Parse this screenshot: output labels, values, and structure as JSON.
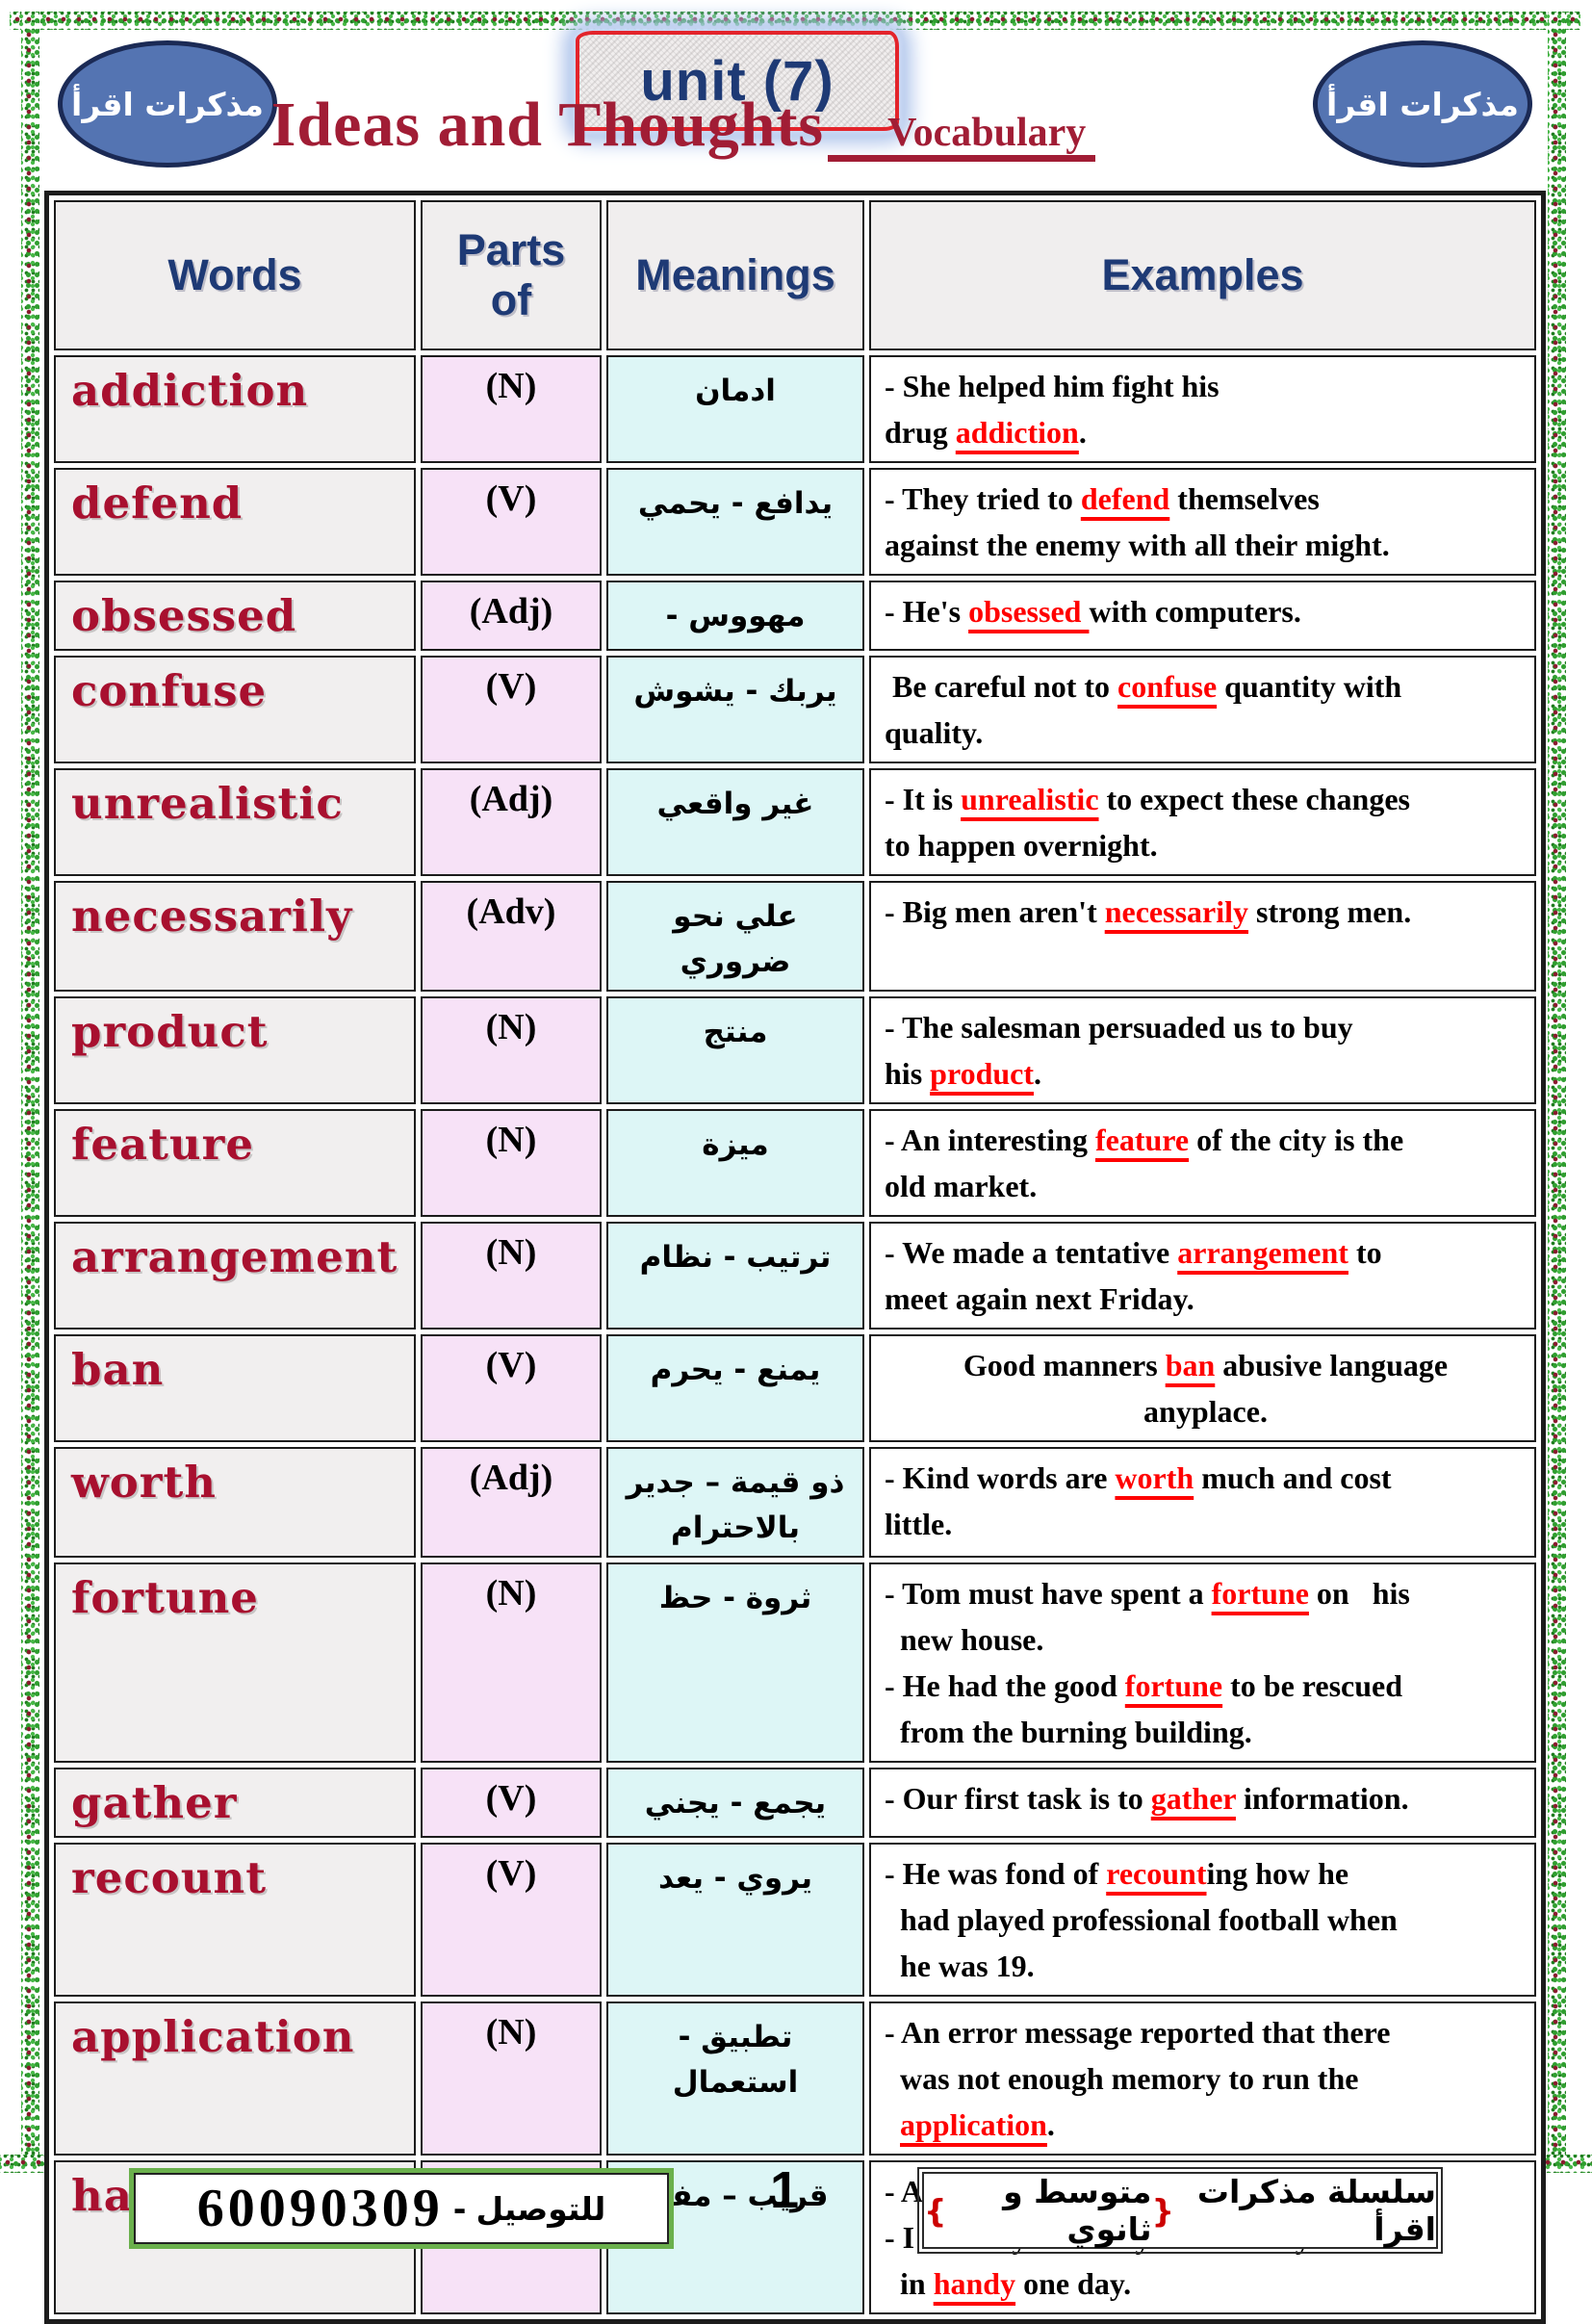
{
  "header": {
    "oval_left": "مذكرات اقرأ",
    "oval_right": "مذكرات اقرأ",
    "unit_badge": "unit (7)",
    "title": "Ideas and Thoughts",
    "subtitle": "Vocabulary"
  },
  "table": {
    "headers": [
      "Words",
      "Parts of",
      "Meanings",
      "Examples"
    ],
    "rows": [
      {
        "word": "addiction",
        "pos": "(N)",
        "meaning": "ادمان",
        "examples": [
          [
            {
              "t": "- She helped him fight his\ndrug "
            },
            {
              "t": "addiction",
              "hl": true
            },
            {
              "t": "."
            }
          ]
        ]
      },
      {
        "word": "defend",
        "pos": "(V)",
        "meaning": "يدافع - يحمي",
        "examples": [
          [
            {
              "t": "- They tried to "
            },
            {
              "t": "defend",
              "hl": true
            },
            {
              "t": " themselves\nagainst the enemy with all their might."
            }
          ]
        ]
      },
      {
        "word": "obsessed",
        "pos": "(Adj)",
        "meaning": "مهووس -",
        "examples": [
          [
            {
              "t": "- He's "
            },
            {
              "t": "obsessed ",
              "hl": true
            },
            {
              "t": "with computers."
            }
          ]
        ]
      },
      {
        "word": "confuse",
        "pos": "(V)",
        "meaning": "يربك - يشوش",
        "examples": [
          [
            {
              "t": " Be careful not to "
            },
            {
              "t": "confuse",
              "hl": true
            },
            {
              "t": " quantity with\nquality."
            }
          ]
        ]
      },
      {
        "word": "unrealistic",
        "pos": "(Adj)",
        "meaning": "غير واقعي",
        "examples": [
          [
            {
              "t": "- It is "
            },
            {
              "t": "unrealistic",
              "hl": true
            },
            {
              "t": " to expect these changes\nto happen overnight."
            }
          ]
        ]
      },
      {
        "word": "necessarily",
        "pos": "(Adv)",
        "meaning": "علي نحو ضروري",
        "examples": [
          [
            {
              "t": "- Big men aren't "
            },
            {
              "t": "necessarily",
              "hl": true
            },
            {
              "t": " strong men."
            }
          ]
        ]
      },
      {
        "word": "product",
        "pos": "(N)",
        "meaning": "منتج",
        "examples": [
          [
            {
              "t": "- The salesman persuaded us to buy\nhis "
            },
            {
              "t": "product",
              "hl": true
            },
            {
              "t": "."
            }
          ]
        ]
      },
      {
        "word": "feature",
        "pos": "(N)",
        "meaning": "ميزة",
        "examples": [
          [
            {
              "t": "- An interesting "
            },
            {
              "t": "feature",
              "hl": true
            },
            {
              "t": " of the city is the\nold market."
            }
          ]
        ]
      },
      {
        "word": "arrangement",
        "pos": "(N)",
        "meaning": "ترتيب - نظام",
        "examples": [
          [
            {
              "t": "- We made a tentative "
            },
            {
              "t": "arrangement",
              "hl": true
            },
            {
              "t": " to\nmeet again next Friday."
            }
          ]
        ]
      },
      {
        "word": "ban",
        "pos": "(V)",
        "meaning": "يمنع - يحرم",
        "center": true,
        "examples": [
          [
            {
              "t": "Good manners "
            },
            {
              "t": "ban",
              "hl": true
            },
            {
              "t": " abusive language\nanyplace."
            }
          ]
        ]
      },
      {
        "word": "worth",
        "pos": "(Adj)",
        "meaning": "ذو قيمة – جدير\nبالاحترام",
        "examples": [
          [
            {
              "t": "- Kind words are "
            },
            {
              "t": "worth",
              "hl": true
            },
            {
              "t": " much and cost\nlittle."
            }
          ]
        ]
      },
      {
        "word": "fortune",
        "pos": "(N)",
        "meaning": "ثروة - حظ",
        "examples": [
          [
            {
              "t": "- Tom must have spent a "
            },
            {
              "t": "fortune",
              "hl": true
            },
            {
              "t": " on   his\n  new house."
            }
          ],
          [
            {
              "t": "- He had the good "
            },
            {
              "t": "fortune",
              "hl": true
            },
            {
              "t": " to be rescued\n  from the burning building."
            }
          ]
        ]
      },
      {
        "word": "gather",
        "pos": "(V)",
        "meaning": "يجمع - يجني",
        "examples": [
          [
            {
              "t": "- Our first task is to "
            },
            {
              "t": "gather",
              "hl": true
            },
            {
              "t": " information."
            }
          ]
        ]
      },
      {
        "word": "recount",
        "pos": "(V)",
        "meaning": "يروي - يعد",
        "examples": [
          [
            {
              "t": "- He was fond of "
            },
            {
              "t": "recount",
              "hl": true
            },
            {
              "t": "ing how he\n  had played professional football when\n  he was 19."
            }
          ]
        ]
      },
      {
        "word": "application",
        "pos": "(N)",
        "meaning": "تطبيق -\nاستعمال",
        "examples": [
          [
            {
              "t": "- An error message reported that there\n  was not enough memory to run the\n  "
            },
            {
              "t": "application",
              "hl": true
            },
            {
              "t": "."
            }
          ]
        ]
      },
      {
        "word": "handy",
        "pos": "(Adj)",
        "meaning": "قريب – مفيد",
        "examples": [
          [
            {
              "t": "- Always keep a first-aid kit "
            },
            {
              "t": "handy",
              "hl": true
            },
            {
              "t": "."
            }
          ],
          [
            {
              "t": "- I advise you to buy one? it may come\n  in "
            },
            {
              "t": "handy",
              "hl": true
            },
            {
              "t": " one day."
            }
          ]
        ]
      }
    ]
  },
  "footer": {
    "delivery_label": "للتوصيل",
    "delivery_separator": "-",
    "delivery_number": "60090309",
    "page_number": "1",
    "series": [
      {
        "t": "سلسلة مذكرات اقرأ "
      },
      {
        "t": "{",
        "red": true
      },
      {
        "t": "متوسط و ثانوي"
      },
      {
        "t": "}",
        "red": true
      }
    ]
  },
  "colors": {
    "word_red": "#a8102f",
    "header_navy": "#1e3a75",
    "title_red": "#a11d35",
    "highlight_red": "#ff0000",
    "pos_cell_bg": "#f7e2f7",
    "meaning_cell_bg": "#ddf6f6",
    "word_cell_bg": "#f1efef",
    "oval_blue": "#5474b2",
    "border_green": "#2f9e2f",
    "footer_box_green": "#6ab04c"
  }
}
